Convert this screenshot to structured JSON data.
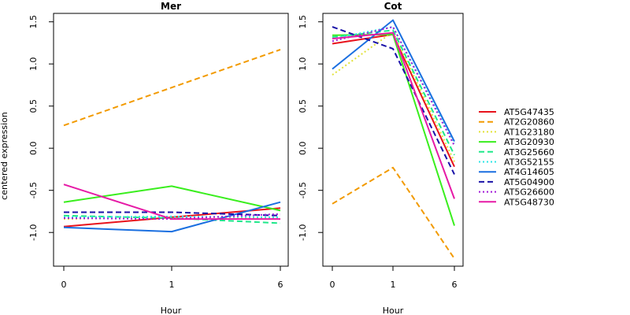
{
  "chart_data": {
    "type": "line",
    "ylabel": "centered expression",
    "ylim": [
      -1.4,
      1.6
    ],
    "yticks": [
      -1.0,
      -0.5,
      0.0,
      0.5,
      1.0,
      1.5
    ],
    "ytick_labels": [
      "-1.0",
      "-0.5",
      "0.0",
      "0.5",
      "1.0",
      "1.5"
    ],
    "x_categories": [
      "0",
      "1",
      "6"
    ],
    "legend_position": "right",
    "series_styles": [
      {
        "name": "AT5G47435",
        "color": "#e8121c",
        "dash": "solid"
      },
      {
        "name": "AT2G20860",
        "color": "#f29a00",
        "dash": "dashed"
      },
      {
        "name": "AT1G23180",
        "color": "#e2e23a",
        "dash": "dotted"
      },
      {
        "name": "AT3G20930",
        "color": "#3aee1e",
        "dash": "solid"
      },
      {
        "name": "AT3G25660",
        "color": "#1ee88a",
        "dash": "dashed"
      },
      {
        "name": "AT3G52155",
        "color": "#2ce6e6",
        "dash": "dotted"
      },
      {
        "name": "AT4G14605",
        "color": "#1a6fe0",
        "dash": "solid"
      },
      {
        "name": "AT5G04900",
        "color": "#1a12a8",
        "dash": "dashed"
      },
      {
        "name": "AT5G26600",
        "color": "#a21ad8",
        "dash": "dotted"
      },
      {
        "name": "AT5G48730",
        "color": "#e61aa6",
        "dash": "solid"
      }
    ],
    "panels": [
      {
        "title": "Mer",
        "xlabel": "Hour",
        "series": [
          {
            "name": "AT5G47435",
            "values": [
              -0.93,
              -0.82,
              -0.71
            ]
          },
          {
            "name": "AT2G20860",
            "values": [
              0.27,
              0.72,
              1.17
            ]
          },
          {
            "name": "AT1G23180",
            "values": [
              -0.84,
              -0.81,
              -0.83
            ]
          },
          {
            "name": "AT3G20930",
            "values": [
              -0.64,
              -0.45,
              -0.74
            ]
          },
          {
            "name": "AT3G25660",
            "values": [
              -0.8,
              -0.83,
              -0.89
            ]
          },
          {
            "name": "AT3G52155",
            "values": [
              -0.82,
              -0.81,
              -0.82
            ]
          },
          {
            "name": "AT4G14605",
            "values": [
              -0.94,
              -0.99,
              -0.64
            ]
          },
          {
            "name": "AT5G04900",
            "values": [
              -0.76,
              -0.76,
              -0.8
            ]
          },
          {
            "name": "AT5G26600",
            "values": [
              -0.83,
              -0.84,
              -0.78
            ]
          },
          {
            "name": "AT5G48730",
            "values": [
              -0.43,
              -0.84,
              -0.84
            ]
          }
        ]
      },
      {
        "title": "Cot",
        "xlabel": "Hour",
        "series": [
          {
            "name": "AT5G47435",
            "values": [
              1.24,
              1.35,
              -0.22
            ]
          },
          {
            "name": "AT2G20860",
            "values": [
              -0.66,
              -0.23,
              -1.31
            ]
          },
          {
            "name": "AT1G23180",
            "values": [
              0.87,
              1.38,
              -0.16
            ]
          },
          {
            "name": "AT3G20930",
            "values": [
              1.34,
              1.35,
              -0.92
            ]
          },
          {
            "name": "AT3G25660",
            "values": [
              1.32,
              1.4,
              -0.08
            ]
          },
          {
            "name": "AT3G52155",
            "values": [
              1.3,
              1.44,
              0.06
            ]
          },
          {
            "name": "AT4G14605",
            "values": [
              0.94,
              1.52,
              0.08
            ]
          },
          {
            "name": "AT5G04900",
            "values": [
              1.44,
              1.18,
              -0.31
            ]
          },
          {
            "name": "AT5G26600",
            "values": [
              1.27,
              1.44,
              0.03
            ]
          },
          {
            "name": "AT5G48730",
            "values": [
              1.3,
              1.37,
              -0.6
            ]
          }
        ]
      }
    ]
  }
}
